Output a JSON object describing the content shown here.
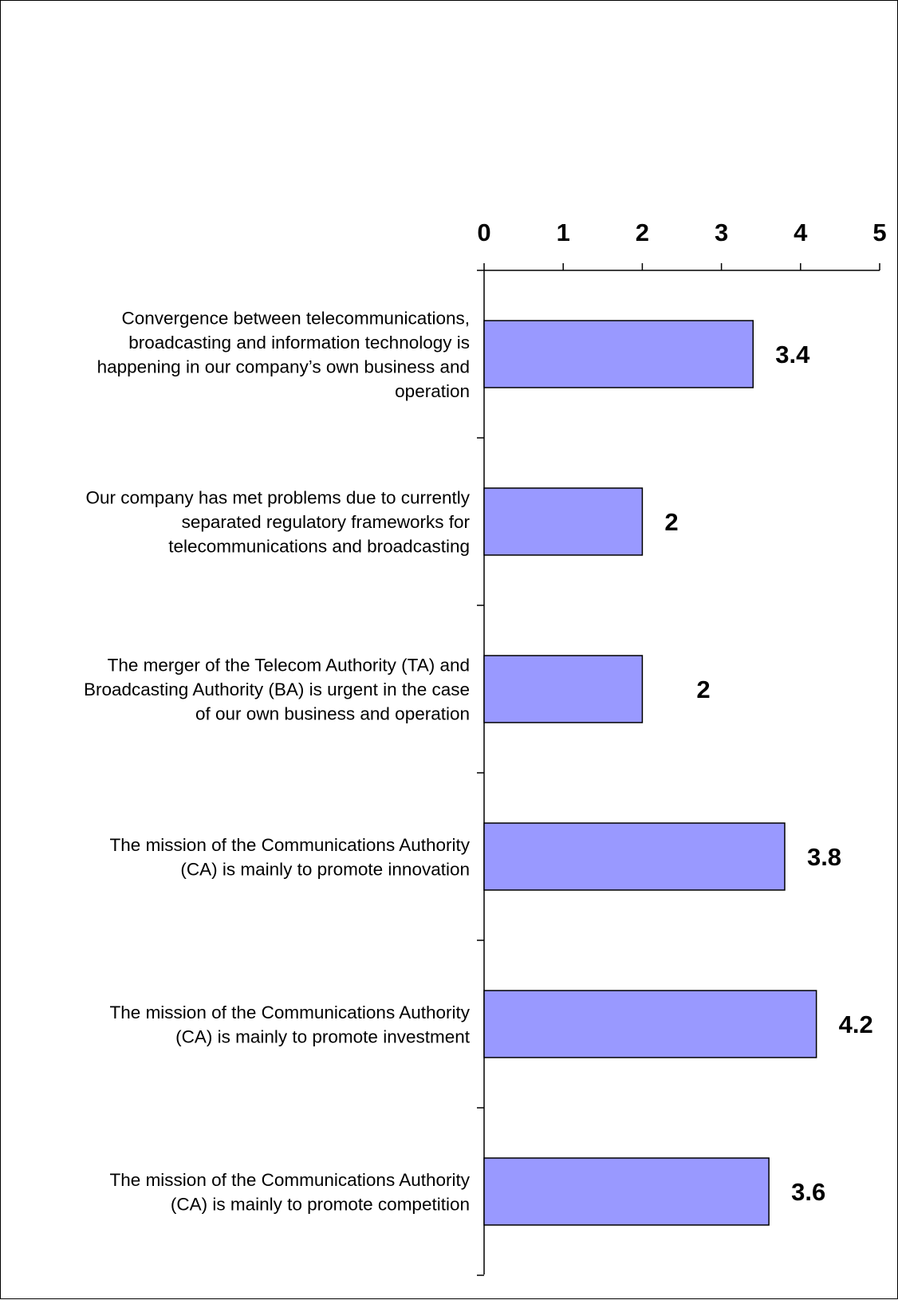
{
  "chart_data": {
    "type": "bar",
    "orientation": "horizontal",
    "title": "",
    "xlabel": "",
    "ylabel": "",
    "xlim": [
      0,
      5
    ],
    "x_ticks": [
      0,
      1,
      2,
      3,
      4,
      5
    ],
    "grid": false,
    "legend": "none",
    "bar_color": "#9999ff",
    "categories": [
      "Convergence between telecommunications, broadcasting and information technology is happening in our company's own business and operation",
      "Our company has met problems due to currently separated regulatory frameworks for telecommunications and broadcasting",
      "The merger of the Telecom Authority (TA) and Broadcasting Authority (BA) is urgent in the case of our own business and operation",
      "The mission of the Communications Authority (CA) is mainly to promote innovation",
      "The mission of the Communications Authority (CA) is mainly to promote investment",
      "The mission of the Communications Authority (CA) is mainly to promote competition"
    ],
    "category_lines": [
      [
        "Convergence between telecommunications,",
        "broadcasting and information technology is",
        "happening in our company’s own business and",
        "operation"
      ],
      [
        "Our company has met problems due to currently",
        "separated regulatory frameworks for",
        "telecommunications and broadcasting"
      ],
      [
        "The merger of the Telecom Authority (TA) and",
        "Broadcasting Authority (BA) is urgent in the case",
        "of our own business and operation"
      ],
      [
        "The mission of the Communications Authority",
        "(CA) is mainly to promote innovation"
      ],
      [
        "The mission of the Communications Authority",
        "(CA) is mainly to promote investment"
      ],
      [
        "The mission of the Communications Authority",
        "(CA) is mainly to promote competition"
      ]
    ],
    "values": [
      3.4,
      2,
      2,
      3.8,
      4.2,
      3.6
    ],
    "data_labels": [
      "3.4",
      "2",
      "2",
      "3.8",
      "4.2",
      "3.6"
    ]
  }
}
